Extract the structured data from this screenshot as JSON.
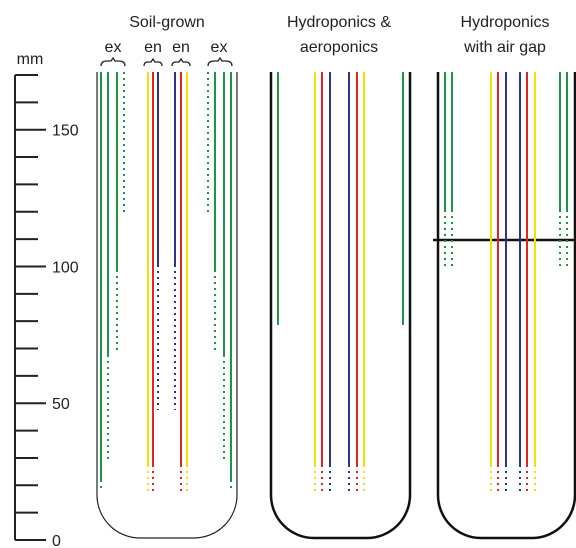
{
  "axis": {
    "label": "mm",
    "ylim": [
      0,
      170
    ],
    "yticks": [
      0,
      50,
      100,
      150
    ],
    "minor_ticks": [
      10,
      20,
      30,
      40,
      60,
      70,
      80,
      90,
      110,
      120,
      130,
      140,
      160,
      170
    ]
  },
  "panels": [
    {
      "title": [
        "Soil-grown"
      ],
      "sublabels": [
        "ex",
        "en",
        "en",
        "ex"
      ]
    },
    {
      "title": [
        "Hydroponics &",
        "aeroponics"
      ]
    },
    {
      "title": [
        "Hydroponics",
        "with air gap"
      ]
    }
  ]
}
